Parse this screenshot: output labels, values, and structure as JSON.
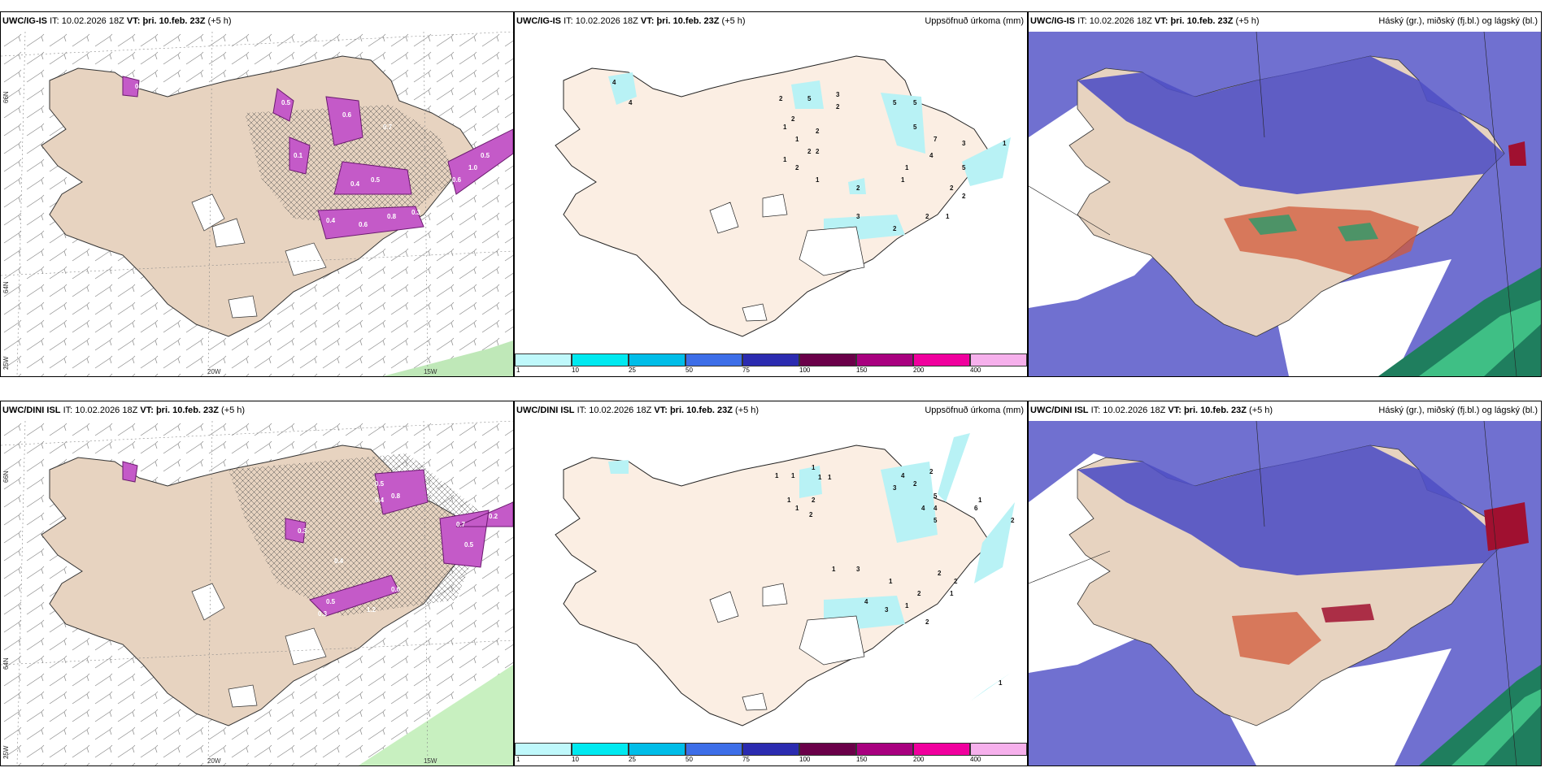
{
  "rows": [
    {
      "model": "UWC/IG-IS",
      "it_label": "IT:",
      "it_value": "10.02.2026 18Z",
      "vt_label": "VT:",
      "vt_value": "þri. 10.feb. 23Z",
      "lead": "(+5 h)"
    },
    {
      "model": "UWC/DINI ISL",
      "it_label": "IT:",
      "it_value": "10.02.2026 18Z",
      "vt_label": "VT:",
      "vt_value": "þri. 10.feb. 23Z",
      "lead": "(+5 h)"
    }
  ],
  "precip_title": "Uppsöfnuð úrkoma (mm)",
  "cloud_title": "Háský (gr.), miðský (fj.bl.) og lágský (bl.)",
  "graticule": {
    "lat_66": "66N",
    "lat_64": "64N",
    "lon_25": "25W",
    "lon_20": "20W",
    "lon_15": "15W"
  },
  "colorbar": {
    "ticks": [
      "1",
      "10",
      "25",
      "50",
      "75",
      "100",
      "150",
      "200",
      "400"
    ],
    "colors": [
      "#bff8fb",
      "#00e9f0",
      "#00bde8",
      "#3d6ee8",
      "#2b2bb0",
      "#6a0049",
      "#a8007f",
      "#f0009e",
      "#f6b0ec"
    ]
  },
  "colors": {
    "land": "#e7d3c0",
    "land_light": "#fbeee3",
    "precip_cyan": "#b8f2f5",
    "cloud_high": "#5555c8",
    "cloud_sea": "#7777d6",
    "purple_precip": "#c45ac8"
  },
  "precip_labels_top": [
    "4",
    "4",
    "2",
    "5",
    "3",
    "2",
    "2",
    "1",
    "1",
    "2",
    "2",
    "1",
    "2",
    "2",
    "1",
    "5",
    "5",
    "5",
    "7",
    "4",
    "3",
    "5",
    "1",
    "1",
    "1",
    "2",
    "3",
    "2",
    "2",
    "2",
    "2",
    "1"
  ],
  "precip_labels_bottom": [
    "1",
    "1",
    "1",
    "1",
    "1",
    "1",
    "1",
    "2",
    "2",
    "4",
    "2",
    "3",
    "2",
    "5",
    "4",
    "4",
    "5",
    "6",
    "1",
    "2",
    "3",
    "4",
    "3",
    "1",
    "1",
    "2",
    "2",
    "1",
    "2",
    "1",
    "2",
    "1"
  ],
  "wind_labels_top": [
    "0.6",
    "0.5",
    "0.1",
    "0.6",
    "0.4",
    "0.7",
    "0.5",
    "0.4",
    "0.6",
    "0.8",
    "0.3",
    "0.6",
    "1.0",
    "0.5"
  ],
  "wind_labels_bottom": [
    "0.3",
    "0.5",
    "0.4",
    "0.8",
    "0.4",
    "0.3",
    "0.5",
    "1.2",
    "0.6",
    "0.7",
    "0.5",
    "0.2"
  ]
}
